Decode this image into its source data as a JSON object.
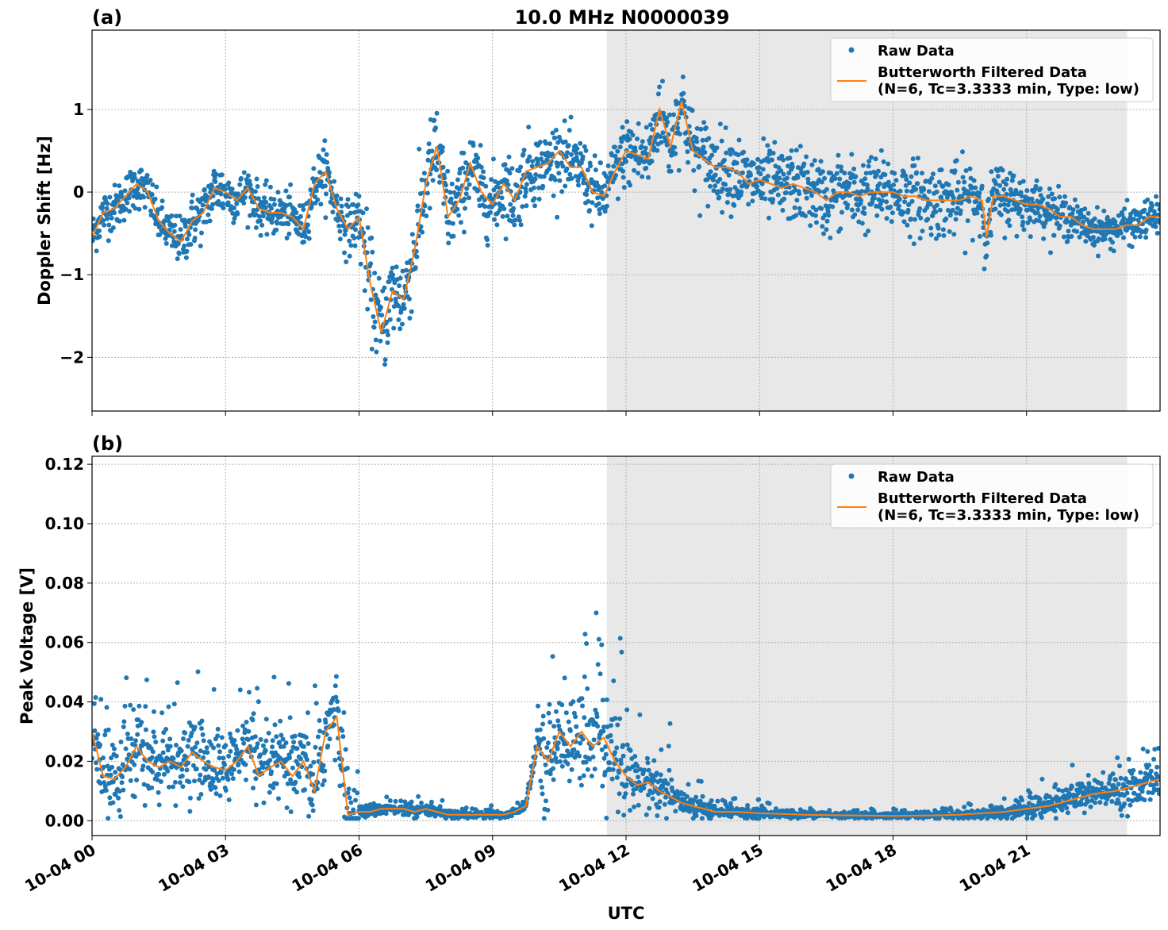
{
  "title": "10.0 MHz N0000039",
  "colors": {
    "raw": "#1f77b4",
    "filtered": "#ff7f0e",
    "shade": "#e8e8e8"
  },
  "chart_data": [
    {
      "type": "scatter",
      "panel_label": "(a)",
      "xlabel": "",
      "ylabel": "Doppler Shift [Hz]",
      "xlim_hours": [
        0,
        24
      ],
      "ylim": [
        -2.65,
        1.96
      ],
      "grid": true,
      "legend_placement": "top-right",
      "shaded_span_hours": [
        11.57,
        23.26
      ],
      "yticks": [
        -2,
        -1,
        0,
        1
      ],
      "ytick_labels": [
        "−2",
        "−1",
        "0",
        "1"
      ],
      "legend": [
        "Raw Data",
        "Butterworth Filtered Data",
        "(N=6, Tc=3.3333 min, Type: low)"
      ],
      "series": [
        {
          "name": "Raw Data",
          "kind": "scatter",
          "spread_per_hour": [
            0.25,
            0.25,
            0.3,
            0.25,
            0.25,
            0.3,
            0.5,
            0.5,
            0.4,
            0.4,
            0.35,
            0.35,
            0.4,
            0.45,
            0.4,
            0.4,
            0.4,
            0.4,
            0.4,
            0.4,
            0.35,
            0.25,
            0.2,
            0.2
          ]
        },
        {
          "name": "Butterworth Filtered Data (N=6, Tc=3.3333 min, Type: low)",
          "kind": "line",
          "x_hours": [
            0,
            0.25,
            0.5,
            0.75,
            1,
            1.25,
            1.5,
            1.75,
            2,
            2.25,
            2.5,
            2.75,
            3,
            3.25,
            3.5,
            3.75,
            4,
            4.25,
            4.5,
            4.75,
            5,
            5.25,
            5.5,
            5.75,
            6,
            6.25,
            6.5,
            6.75,
            7,
            7.25,
            7.5,
            7.75,
            8,
            8.25,
            8.5,
            8.75,
            9,
            9.25,
            9.5,
            9.75,
            10,
            10.25,
            10.5,
            10.75,
            11,
            11.25,
            11.5,
            11.75,
            12,
            12.25,
            12.5,
            12.75,
            13,
            13.25,
            13.5,
            13.75,
            14,
            14.25,
            14.5,
            14.75,
            15,
            15.25,
            15.5,
            15.75,
            16,
            16.25,
            16.5,
            16.75,
            17,
            17.25,
            17.5,
            17.75,
            18,
            18.25,
            18.5,
            18.75,
            19,
            19.25,
            19.5,
            19.75,
            20,
            20.1,
            20.25,
            20.5,
            20.75,
            21,
            21.25,
            21.5,
            21.75,
            22,
            22.25,
            22.5,
            22.75,
            23,
            23.25,
            23.5,
            23.75,
            24
          ],
          "y": [
            -0.55,
            -0.25,
            -0.2,
            -0.05,
            0.1,
            0.0,
            -0.35,
            -0.5,
            -0.6,
            -0.35,
            -0.25,
            0.05,
            0.0,
            -0.1,
            0.05,
            -0.2,
            -0.25,
            -0.25,
            -0.3,
            -0.45,
            0.1,
            0.25,
            -0.2,
            -0.45,
            -0.3,
            -1.1,
            -1.7,
            -1.2,
            -1.3,
            -0.7,
            0.1,
            0.55,
            -0.3,
            -0.1,
            0.35,
            0.0,
            -0.15,
            0.1,
            -0.1,
            0.25,
            0.3,
            0.35,
            0.5,
            0.3,
            0.3,
            0.0,
            -0.05,
            0.25,
            0.5,
            0.45,
            0.4,
            1.0,
            0.55,
            1.1,
            0.5,
            0.4,
            0.3,
            0.3,
            0.25,
            0.1,
            0.15,
            0.1,
            0.05,
            0.1,
            0.05,
            0.0,
            -0.1,
            0.0,
            0.0,
            -0.05,
            0.0,
            0.0,
            0.0,
            -0.05,
            -0.05,
            -0.1,
            -0.1,
            -0.1,
            -0.1,
            -0.05,
            -0.1,
            -0.55,
            -0.05,
            -0.05,
            -0.1,
            -0.15,
            -0.15,
            -0.2,
            -0.3,
            -0.3,
            -0.4,
            -0.45,
            -0.45,
            -0.45,
            -0.4,
            -0.4,
            -0.3,
            -0.3
          ]
        }
      ]
    },
    {
      "type": "scatter",
      "panel_label": "(b)",
      "xlabel": "UTC",
      "ylabel": "Peak Voltage [V]",
      "xlim_hours": [
        0,
        24
      ],
      "ylim": [
        -0.005,
        0.1227
      ],
      "grid": true,
      "legend_placement": "top-right",
      "shaded_span_hours": [
        11.57,
        23.26
      ],
      "yticks": [
        0,
        0.02,
        0.04,
        0.06,
        0.08,
        0.1,
        0.12
      ],
      "ytick_labels": [
        "0.00",
        "0.02",
        "0.04",
        "0.06",
        "0.08",
        "0.10",
        "0.12"
      ],
      "xticks_hours": [
        0,
        3,
        6,
        9,
        12,
        15,
        18,
        21
      ],
      "xtick_labels": [
        "10-04 00",
        "10-04 03",
        "10-04 06",
        "10-04 09",
        "10-04 12",
        "10-04 15",
        "10-04 18",
        "10-04 21"
      ],
      "legend": [
        "Raw Data",
        "Butterworth Filtered Data",
        "(N=6, Tc=3.3333 min, Type: low)"
      ],
      "series": [
        {
          "name": "Raw Data",
          "kind": "scatter",
          "spread_per_hour": [
            0.012,
            0.012,
            0.012,
            0.012,
            0.013,
            0.015,
            0.002,
            0.002,
            0.0015,
            0.0015,
            0.015,
            0.018,
            0.01,
            0.004,
            0.002,
            0.0015,
            0.001,
            0.001,
            0.001,
            0.0015,
            0.002,
            0.004,
            0.006,
            0.007
          ]
        },
        {
          "name": "Butterworth Filtered Data (N=6, Tc=3.3333 min, Type: low)",
          "kind": "line",
          "x_hours": [
            0,
            0.25,
            0.5,
            0.75,
            1,
            1.25,
            1.5,
            1.75,
            2,
            2.25,
            2.5,
            2.75,
            3,
            3.25,
            3.5,
            3.75,
            4,
            4.25,
            4.5,
            4.75,
            5,
            5.25,
            5.5,
            5.75,
            6,
            6.25,
            6.5,
            6.75,
            7,
            7.25,
            7.5,
            7.75,
            8,
            8.25,
            8.5,
            8.75,
            9,
            9.25,
            9.5,
            9.75,
            10,
            10.25,
            10.5,
            10.75,
            11,
            11.25,
            11.5,
            11.75,
            12,
            12.25,
            12.5,
            12.75,
            13,
            13.25,
            13.5,
            13.75,
            14,
            14.5,
            15,
            16,
            17,
            18,
            19,
            19.5,
            20,
            20.5,
            21,
            21.5,
            22,
            22.5,
            23,
            23.5,
            24
          ],
          "y": [
            0.03,
            0.015,
            0.014,
            0.018,
            0.025,
            0.02,
            0.018,
            0.02,
            0.018,
            0.023,
            0.02,
            0.018,
            0.017,
            0.02,
            0.025,
            0.015,
            0.018,
            0.02,
            0.015,
            0.02,
            0.01,
            0.03,
            0.035,
            0.002,
            0.003,
            0.003,
            0.004,
            0.004,
            0.004,
            0.003,
            0.004,
            0.003,
            0.002,
            0.002,
            0.002,
            0.002,
            0.002,
            0.002,
            0.003,
            0.005,
            0.025,
            0.02,
            0.03,
            0.025,
            0.03,
            0.025,
            0.028,
            0.02,
            0.015,
            0.012,
            0.013,
            0.01,
            0.008,
            0.006,
            0.005,
            0.004,
            0.003,
            0.003,
            0.0025,
            0.002,
            0.0018,
            0.0016,
            0.0018,
            0.002,
            0.0025,
            0.003,
            0.004,
            0.005,
            0.007,
            0.009,
            0.01,
            0.012,
            0.014
          ]
        }
      ]
    }
  ]
}
